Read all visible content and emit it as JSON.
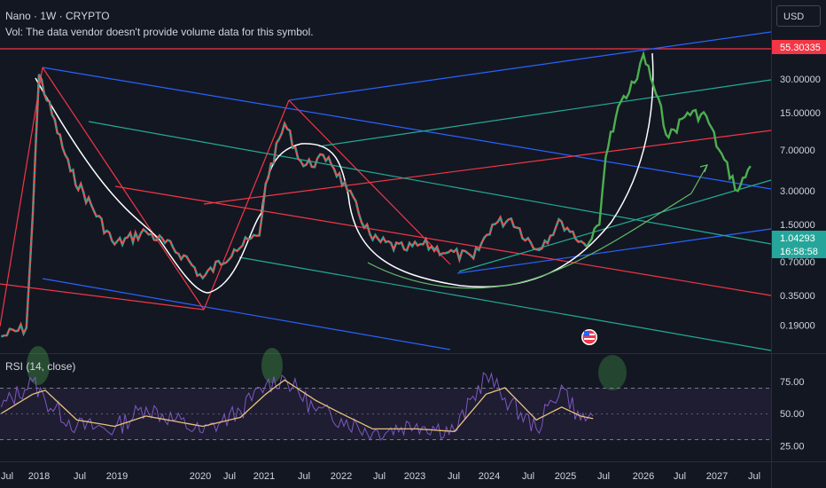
{
  "header": {
    "title": "Nano · 1W · CRYPTO",
    "volume_note": "Vol: The data vendor doesn't provide volume data for this symbol."
  },
  "currency_button": "USD",
  "colors": {
    "background": "#131722",
    "price_up": "#26a69a",
    "price_down": "#ef5350",
    "forecast": "#4caf50",
    "rsi_line": "#7e57c2",
    "rsi_ma": "#e8c27a",
    "red_level": "#f23645",
    "blue_line": "#2962ff",
    "green_line": "#22ab94",
    "white_curve": "#ffffff"
  },
  "icons": [
    "us-flag-icon",
    "earnings-icon"
  ],
  "chart_data": [
    {
      "type": "line",
      "title": "Nano · 1W · CRYPTO",
      "y_scale": "log",
      "price_axis_ticks": [
        "30.00000",
        "15.00000",
        "7.00000",
        "3.00000",
        "1.50000",
        "0.70000",
        "0.35000",
        "0.19000"
      ],
      "time_axis_ticks": [
        "Jul",
        "2018",
        "Jul",
        "2019",
        "2020",
        "Jul",
        "2021",
        "Jul",
        "2022",
        "Jul",
        "2023",
        "Jul",
        "2024",
        "Jul",
        "2025",
        "Jul",
        "2026",
        "Jul",
        "2027",
        "Jul"
      ],
      "price_labels": [
        {
          "text": "55.30335",
          "kind": "level",
          "color": "#f23645"
        },
        {
          "text": "1.04293",
          "kind": "last",
          "color": "#26a69a"
        },
        {
          "text": "16:58:58",
          "kind": "countdown",
          "color": "#26a69a"
        }
      ],
      "historical_series": {
        "x": [
          "2017-07",
          "2017-11",
          "2017-12",
          "2018-01",
          "2018-06",
          "2019-01",
          "2019-06",
          "2019-12",
          "2020-03",
          "2020-08",
          "2020-12",
          "2021-01",
          "2021-04",
          "2021-07",
          "2021-11",
          "2022-02",
          "2022-06",
          "2022-11",
          "2023-02",
          "2023-06",
          "2023-10",
          "2024-01",
          "2024-04",
          "2024-08",
          "2024-12",
          "2025-04"
        ],
        "y": [
          0.15,
          0.18,
          1.8,
          33.0,
          4.5,
          1.0,
          1.3,
          0.8,
          0.5,
          0.9,
          1.2,
          3.5,
          12.0,
          5.0,
          6.0,
          3.0,
          1.1,
          0.9,
          1.0,
          0.85,
          0.75,
          1.5,
          1.7,
          0.9,
          1.6,
          0.95
        ]
      },
      "forecast_series": {
        "x": [
          "2025-04",
          "2025-06",
          "2025-07",
          "2025-09",
          "2025-12",
          "2026-01",
          "2026-03",
          "2026-05",
          "2026-08",
          "2026-11",
          "2027-01",
          "2027-04",
          "2027-06"
        ],
        "y": [
          0.95,
          1.5,
          6.0,
          17.0,
          30.0,
          50.0,
          22.0,
          9.0,
          15.0,
          14.0,
          7.0,
          3.0,
          5.0
        ]
      },
      "annotations": [
        "cup and handle curves",
        "descending red channel",
        "ascending blue channel",
        "green fan lines",
        "projection arrow"
      ]
    },
    {
      "type": "line",
      "title": "RSI (14, close)",
      "y_ticks": [
        "75.00",
        "50.00",
        "25.00"
      ],
      "bands": [
        70,
        50,
        30
      ],
      "series": [
        {
          "name": "RSI",
          "x": [
            "2017-07",
            "2017-12",
            "2018-02",
            "2018-07",
            "2019-01",
            "2019-06",
            "2020-03",
            "2020-09",
            "2021-01",
            "2021-04",
            "2021-09",
            "2022-01",
            "2022-06",
            "2023-01",
            "2023-07",
            "2023-12",
            "2024-03",
            "2024-08",
            "2024-12",
            "2025-03",
            "2025-05"
          ],
          "y": [
            55,
            75,
            60,
            40,
            38,
            55,
            35,
            52,
            72,
            78,
            52,
            46,
            35,
            42,
            36,
            80,
            62,
            38,
            72,
            45,
            48
          ]
        },
        {
          "name": "RSI-based MA",
          "x": [
            "2017-07",
            "2017-12",
            "2018-02",
            "2018-07",
            "2019-01",
            "2019-06",
            "2020-03",
            "2020-09",
            "2021-01",
            "2021-04",
            "2021-09",
            "2022-01",
            "2022-06",
            "2023-01",
            "2023-07",
            "2023-12",
            "2024-03",
            "2024-08",
            "2024-12",
            "2025-03",
            "2025-05"
          ],
          "y": [
            50,
            65,
            68,
            45,
            40,
            48,
            40,
            47,
            65,
            76,
            60,
            50,
            38,
            38,
            36,
            65,
            70,
            45,
            55,
            48,
            46
          ]
        }
      ]
    }
  ]
}
